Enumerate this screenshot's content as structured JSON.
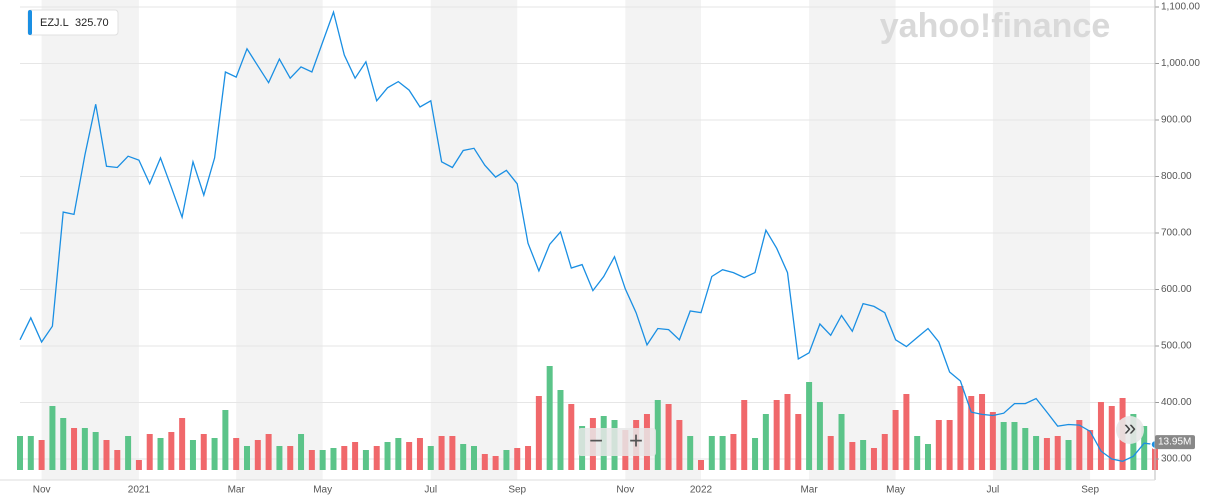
{
  "chart_data": {
    "type": "line",
    "watermark": "yahoo!finance",
    "categories": [
      null,
      null,
      "Nov",
      null,
      null,
      null,
      null,
      null,
      null,
      null,
      null,
      "2021",
      null,
      null,
      null,
      null,
      null,
      null,
      null,
      null,
      "Mar",
      null,
      null,
      null,
      null,
      null,
      null,
      null,
      "May",
      null,
      null,
      null,
      null,
      null,
      null,
      null,
      null,
      null,
      "Jul",
      null,
      null,
      null,
      null,
      null,
      null,
      null,
      "Sep",
      null,
      null,
      null,
      null,
      null,
      null,
      null,
      null,
      null,
      "Nov",
      null,
      null,
      null,
      null,
      null,
      null,
      "2022",
      null,
      null,
      null,
      null,
      null,
      null,
      null,
      null,
      null,
      "Mar",
      null,
      null,
      null,
      null,
      null,
      null,
      null,
      "May",
      null,
      null,
      null,
      null,
      null,
      null,
      null,
      null,
      "Jul",
      null,
      null,
      null,
      null,
      null,
      null,
      null,
      null,
      "Sep",
      null,
      null,
      null,
      null,
      null,
      null
    ],
    "series": [
      {
        "name": "EZJ.L",
        "color": "#1a8fe3",
        "last_value_label": "325.70",
        "values": [
          511,
          550,
          507,
          535,
          737,
          733,
          838,
          928,
          818,
          816,
          836,
          829,
          787,
          833,
          781,
          728,
          826,
          767,
          833,
          985,
          976,
          1026,
          996,
          966,
          1008,
          974,
          994,
          985,
          1038,
          1091,
          1015,
          974,
          1003,
          934,
          957,
          968,
          953,
          923,
          934,
          826,
          816,
          846,
          850,
          820,
          799,
          811,
          787,
          682,
          633,
          680,
          702,
          638,
          644,
          598,
          623,
          658,
          601,
          559,
          502,
          531,
          529,
          511,
          562,
          559,
          623,
          635,
          630,
          621,
          630,
          705,
          673,
          630,
          477,
          488,
          539,
          519,
          554,
          526,
          575,
          570,
          559,
          511,
          499,
          515,
          531,
          507,
          454,
          438,
          383,
          379,
          377,
          381,
          398,
          398,
          407,
          383,
          358,
          361,
          360,
          349,
          314,
          300,
          296,
          305,
          328,
          325.7
        ]
      },
      {
        "name": "Volume",
        "axis": "volume",
        "up_color": "#5bc489",
        "down_color": "#f0686b",
        "last_value_label": "13.95M",
        "values": [
          17,
          17,
          15,
          32,
          26,
          21,
          21,
          19,
          15,
          10,
          17,
          5,
          18,
          16,
          19,
          26,
          15,
          18,
          16,
          30,
          16,
          12,
          15,
          18,
          12,
          12,
          18,
          10,
          10,
          11,
          12,
          14,
          10,
          12,
          14,
          16,
          14,
          16,
          12,
          17,
          17,
          13,
          12,
          8,
          7,
          10,
          11,
          12,
          37,
          52,
          40,
          33,
          22,
          26,
          27,
          25,
          20,
          25,
          28,
          35,
          33,
          25,
          17,
          5,
          17,
          17,
          18,
          35,
          16,
          28,
          35,
          38,
          28,
          44,
          34,
          17,
          28,
          14,
          15,
          11,
          18,
          30,
          38,
          17,
          13,
          25,
          25,
          42,
          37,
          38,
          29,
          24,
          24,
          21,
          17,
          16,
          17,
          15,
          25,
          20,
          34,
          32,
          36,
          28,
          22,
          13.95
        ]
      }
    ],
    "ylim": [
      300,
      1100
    ],
    "yticks": [
      {
        "value": 300,
        "label": "300.00"
      },
      {
        "value": 400,
        "label": "400.00"
      },
      {
        "value": 500,
        "label": "500.00"
      },
      {
        "value": 600,
        "label": "600.00"
      },
      {
        "value": 700,
        "label": "700.00"
      },
      {
        "value": 800,
        "label": "800.00"
      },
      {
        "value": 900,
        "label": "900.00"
      },
      {
        "value": 1000,
        "label": "1,000.00"
      },
      {
        "value": 1100,
        "label": "1,100.00"
      }
    ],
    "grid": true,
    "controls": {
      "zoom_out": "−",
      "zoom_in": "+",
      "next": "»"
    }
  }
}
